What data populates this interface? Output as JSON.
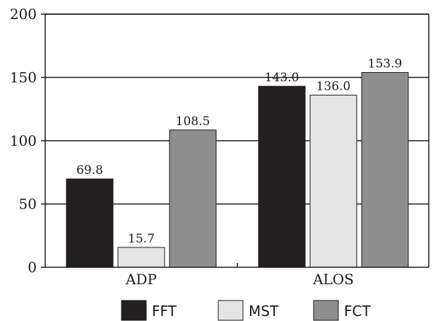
{
  "chart_data": {
    "type": "bar",
    "categories": [
      "ADP",
      "ALOS"
    ],
    "series": [
      {
        "name": "FFT",
        "values": [
          69.8,
          143.0
        ],
        "value_labels": [
          "69.8",
          "143.0"
        ],
        "color": "#231f20"
      },
      {
        "name": "MST",
        "values": [
          15.7,
          136.0
        ],
        "value_labels": [
          "15.7",
          "136.0"
        ],
        "color": "#e4e4e4"
      },
      {
        "name": "FCT",
        "values": [
          108.5,
          153.9
        ],
        "value_labels": [
          "108.5",
          "153.9"
        ],
        "color": "#8e8e8e"
      }
    ],
    "ylim": [
      0,
      200
    ],
    "yticks": [
      0,
      50,
      100,
      150,
      200
    ],
    "ytick_labels": [
      "0",
      "50",
      "100",
      "150",
      "200"
    ],
    "grid": "horizontal",
    "legend_position": "bottom",
    "title": "",
    "xlabel": "",
    "ylabel": ""
  }
}
